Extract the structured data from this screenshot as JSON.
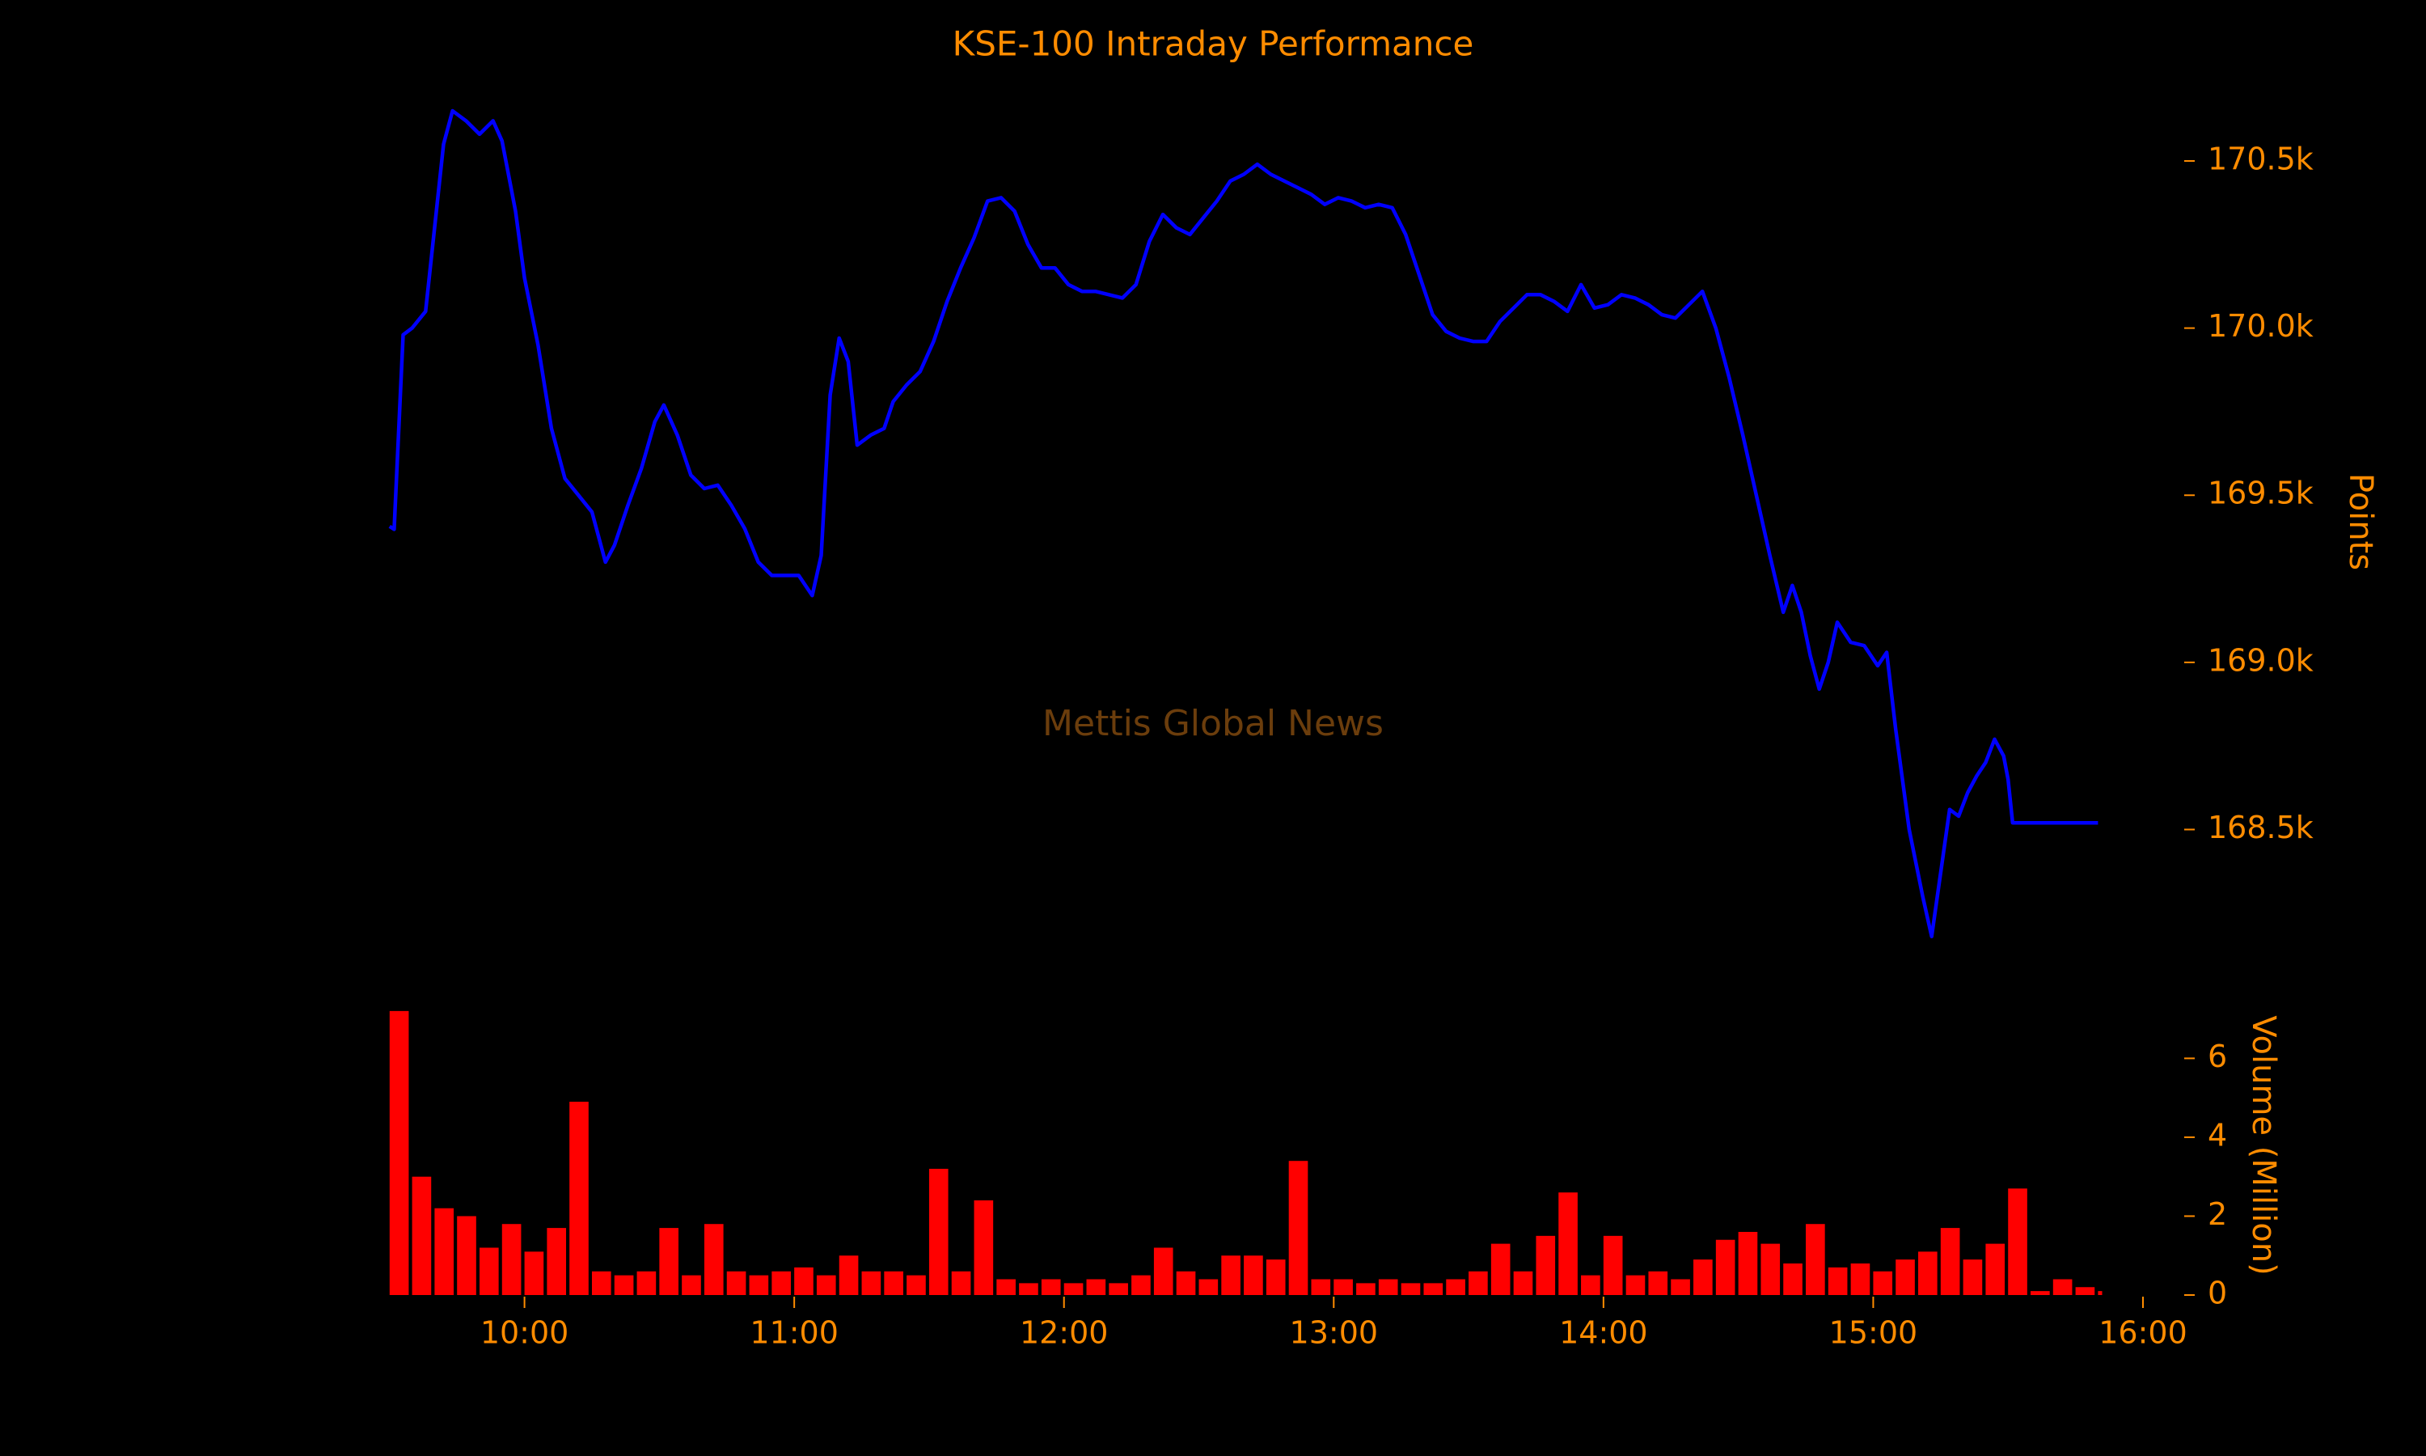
{
  "chart_data": [
    {
      "type": "line",
      "title": "KSE-100 Intraday Performance",
      "watermark": "Mettis Global News",
      "y_label": "Points",
      "x": [
        "09:30",
        "09:31",
        "09:33",
        "09:35",
        "09:38",
        "09:40",
        "09:42",
        "09:44",
        "09:47",
        "09:50",
        "09:53",
        "09:55",
        "09:58",
        "10:00",
        "10:03",
        "10:06",
        "10:09",
        "10:12",
        "10:15",
        "10:18",
        "10:20",
        "10:23",
        "10:26",
        "10:29",
        "10:31",
        "10:34",
        "10:37",
        "10:40",
        "10:43",
        "10:46",
        "10:49",
        "10:52",
        "10:55",
        "10:58",
        "11:01",
        "11:04",
        "11:06",
        "11:08",
        "11:10",
        "11:12",
        "11:14",
        "11:17",
        "11:20",
        "11:22",
        "11:25",
        "11:28",
        "11:31",
        "11:34",
        "11:37",
        "11:40",
        "11:43",
        "11:46",
        "11:49",
        "11:52",
        "11:55",
        "11:58",
        "12:01",
        "12:04",
        "12:07",
        "12:10",
        "12:13",
        "12:16",
        "12:19",
        "12:22",
        "12:25",
        "12:28",
        "12:31",
        "12:34",
        "12:37",
        "12:40",
        "12:43",
        "12:46",
        "12:49",
        "12:52",
        "12:55",
        "12:58",
        "13:01",
        "13:04",
        "13:07",
        "13:10",
        "13:13",
        "13:16",
        "13:19",
        "13:22",
        "13:25",
        "13:28",
        "13:31",
        "13:34",
        "13:37",
        "13:40",
        "13:43",
        "13:46",
        "13:49",
        "13:52",
        "13:55",
        "13:58",
        "14:01",
        "14:04",
        "14:07",
        "14:10",
        "14:13",
        "14:16",
        "14:19",
        "14:22",
        "14:25",
        "14:28",
        "14:31",
        "14:34",
        "14:37",
        "14:40",
        "14:42",
        "14:44",
        "14:46",
        "14:48",
        "14:50",
        "14:52",
        "14:55",
        "14:58",
        "15:01",
        "15:03",
        "15:05",
        "15:08",
        "15:11",
        "15:13",
        "15:15",
        "15:17",
        "15:19",
        "15:21",
        "15:23",
        "15:25",
        "15:27",
        "15:29",
        "15:30",
        "15:31",
        "15:35",
        "15:40",
        "15:45",
        "15:50"
      ],
      "values": [
        169407,
        169398,
        169980,
        170000,
        170050,
        170300,
        170550,
        170650,
        170620,
        170580,
        170620,
        170560,
        170350,
        170150,
        169950,
        169700,
        169550,
        169500,
        169450,
        169300,
        169350,
        169470,
        169580,
        169720,
        169770,
        169680,
        169560,
        169520,
        169530,
        169470,
        169400,
        169300,
        169260,
        169260,
        169260,
        169200,
        169320,
        169800,
        169970,
        169900,
        169650,
        169680,
        169700,
        169780,
        169830,
        169870,
        169960,
        170080,
        170180,
        170270,
        170380,
        170390,
        170350,
        170250,
        170180,
        170180,
        170130,
        170110,
        170110,
        170100,
        170090,
        170130,
        170260,
        170340,
        170300,
        170280,
        170330,
        170380,
        170440,
        170460,
        170490,
        170460,
        170440,
        170420,
        170400,
        170370,
        170390,
        170380,
        170360,
        170370,
        170360,
        170280,
        170160,
        170040,
        169990,
        169970,
        169960,
        169960,
        170020,
        170060,
        170100,
        170100,
        170080,
        170050,
        170130,
        170060,
        170070,
        170100,
        170090,
        170070,
        170040,
        170030,
        170070,
        170110,
        170000,
        169850,
        169680,
        169500,
        169320,
        169150,
        169230,
        169150,
        169020,
        168920,
        169000,
        169120,
        169060,
        169050,
        168990,
        169030,
        168800,
        168500,
        168300,
        168180,
        168370,
        168560,
        168540,
        168610,
        168660,
        168700,
        168770,
        168720,
        168650,
        168520,
        168520,
        168520,
        168520,
        168520
      ],
      "color": "#0000ff",
      "xlim": [
        "09:25",
        "16:00"
      ],
      "ylim": [
        168160,
        170680
      ],
      "yticks": [
        {
          "value": 168500,
          "label": "168.5k"
        },
        {
          "value": 169000,
          "label": "169.0k"
        },
        {
          "value": 169500,
          "label": "169.5k"
        },
        {
          "value": 170000,
          "label": "170.0k"
        },
        {
          "value": 170500,
          "label": "170.5k"
        }
      ]
    },
    {
      "type": "bar",
      "y_label": "Volume (Million)",
      "x": [
        "09:30",
        "09:35",
        "09:40",
        "09:45",
        "09:50",
        "09:55",
        "10:00",
        "10:05",
        "10:10",
        "10:15",
        "10:20",
        "10:25",
        "10:30",
        "10:35",
        "10:40",
        "10:45",
        "10:50",
        "10:55",
        "11:00",
        "11:05",
        "11:10",
        "11:15",
        "11:20",
        "11:25",
        "11:30",
        "11:35",
        "11:40",
        "11:45",
        "11:50",
        "11:55",
        "12:00",
        "12:05",
        "12:10",
        "12:15",
        "12:20",
        "12:25",
        "12:30",
        "12:35",
        "12:40",
        "12:45",
        "12:50",
        "12:55",
        "13:00",
        "13:05",
        "13:10",
        "13:15",
        "13:20",
        "13:25",
        "13:30",
        "13:35",
        "13:40",
        "13:45",
        "13:50",
        "13:55",
        "14:00",
        "14:05",
        "14:10",
        "14:15",
        "14:20",
        "14:25",
        "14:30",
        "14:35",
        "14:40",
        "14:45",
        "14:50",
        "14:55",
        "15:00",
        "15:05",
        "15:10",
        "15:15",
        "15:20",
        "15:25",
        "15:30",
        "15:35",
        "15:40",
        "15:45",
        "15:50"
      ],
      "values": [
        7.2,
        3.0,
        2.2,
        2.0,
        1.2,
        1.8,
        1.1,
        1.7,
        4.9,
        0.6,
        0.5,
        0.6,
        1.7,
        0.5,
        1.8,
        0.6,
        0.5,
        0.6,
        0.7,
        0.5,
        1.0,
        0.6,
        0.6,
        0.5,
        3.2,
        0.6,
        2.4,
        0.4,
        0.3,
        0.4,
        0.3,
        0.4,
        0.3,
        0.5,
        1.2,
        0.6,
        0.4,
        1.0,
        1.0,
        0.9,
        3.4,
        0.4,
        0.4,
        0.3,
        0.4,
        0.3,
        0.3,
        0.4,
        0.6,
        1.3,
        0.6,
        1.5,
        2.6,
        0.5,
        1.5,
        0.5,
        0.6,
        0.4,
        0.9,
        1.4,
        1.6,
        1.3,
        0.8,
        1.8,
        0.7,
        0.8,
        0.6,
        0.9,
        1.1,
        1.7,
        0.9,
        1.3,
        2.7,
        0.1,
        0.4,
        0.2,
        0.1
      ],
      "color": "#ff0000",
      "xlim": [
        "09:25",
        "16:00"
      ],
      "ylim": [
        0,
        7.3
      ],
      "yticks": [
        0,
        2,
        4,
        6
      ],
      "xticks": [
        "10:00",
        "11:00",
        "12:00",
        "13:00",
        "14:00",
        "15:00",
        "16:00"
      ]
    }
  ]
}
